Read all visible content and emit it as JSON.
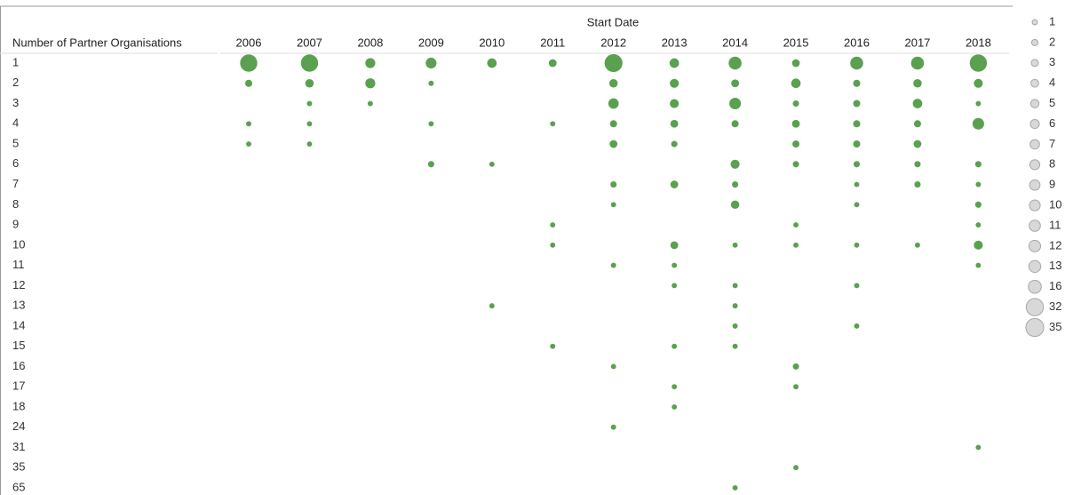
{
  "chart_data": {
    "type": "bubble-table",
    "title": "Start Date",
    "y_label": "Number of Partner Organisations",
    "x": [
      "2006",
      "2007",
      "2008",
      "2009",
      "2010",
      "2011",
      "2012",
      "2013",
      "2014",
      "2015",
      "2016",
      "2017",
      "2018"
    ],
    "categories": [
      "1",
      "2",
      "3",
      "4",
      "5",
      "6",
      "7",
      "8",
      "9",
      "10",
      "11",
      "12",
      "13",
      "14",
      "15",
      "16",
      "17",
      "18",
      "24",
      "31",
      "35",
      "65"
    ],
    "color": "#59a14f",
    "legend_color": "#c8c8c8",
    "size_legend": [
      1,
      2,
      3,
      4,
      5,
      6,
      7,
      8,
      9,
      10,
      11,
      12,
      13,
      16,
      32,
      35
    ],
    "values": [
      [
        32,
        32,
        8,
        10,
        7,
        4,
        35,
        7,
        16,
        4,
        16,
        16,
        32
      ],
      [
        3,
        5,
        8,
        1,
        null,
        null,
        5,
        6,
        4,
        7,
        3,
        5,
        6
      ],
      [
        null,
        1,
        1,
        null,
        null,
        null,
        9,
        6,
        12,
        2,
        3,
        7,
        1
      ],
      [
        1,
        1,
        null,
        1,
        null,
        1,
        3,
        4,
        3,
        4,
        3,
        3,
        12
      ],
      [
        1,
        1,
        null,
        null,
        null,
        null,
        4,
        2,
        null,
        3,
        3,
        4,
        null
      ],
      [
        null,
        null,
        null,
        2,
        1,
        null,
        null,
        null,
        6,
        2,
        2,
        2,
        2
      ],
      [
        null,
        null,
        null,
        null,
        null,
        null,
        2,
        4,
        2,
        null,
        1,
        2,
        1
      ],
      [
        null,
        null,
        null,
        null,
        null,
        null,
        1,
        null,
        5,
        null,
        1,
        null,
        2
      ],
      [
        null,
        null,
        null,
        null,
        null,
        1,
        null,
        null,
        null,
        1,
        null,
        null,
        1
      ],
      [
        null,
        null,
        null,
        null,
        null,
        1,
        null,
        4,
        1,
        1,
        1,
        1,
        6
      ],
      [
        null,
        null,
        null,
        null,
        null,
        null,
        1,
        1,
        null,
        null,
        null,
        null,
        1
      ],
      [
        null,
        null,
        null,
        null,
        null,
        null,
        null,
        1,
        1,
        null,
        1,
        null,
        null
      ],
      [
        null,
        null,
        null,
        null,
        1,
        null,
        null,
        null,
        1,
        null,
        null,
        null,
        null
      ],
      [
        null,
        null,
        null,
        null,
        null,
        null,
        null,
        null,
        1,
        null,
        1,
        null,
        null
      ],
      [
        null,
        null,
        null,
        null,
        null,
        1,
        null,
        1,
        1,
        null,
        null,
        null,
        null
      ],
      [
        null,
        null,
        null,
        null,
        null,
        null,
        1,
        null,
        null,
        2,
        null,
        null,
        null
      ],
      [
        null,
        null,
        null,
        null,
        null,
        null,
        null,
        1,
        null,
        1,
        null,
        null,
        null
      ],
      [
        null,
        null,
        null,
        null,
        null,
        null,
        null,
        1,
        null,
        null,
        null,
        null,
        null
      ],
      [
        null,
        null,
        null,
        null,
        null,
        null,
        1,
        null,
        null,
        null,
        null,
        null,
        null
      ],
      [
        null,
        null,
        null,
        null,
        null,
        null,
        null,
        null,
        null,
        null,
        null,
        null,
        1
      ],
      [
        null,
        null,
        null,
        null,
        null,
        null,
        null,
        null,
        null,
        1,
        null,
        null,
        null
      ],
      [
        null,
        null,
        null,
        null,
        null,
        null,
        null,
        null,
        1,
        null,
        null,
        null,
        null
      ]
    ]
  }
}
